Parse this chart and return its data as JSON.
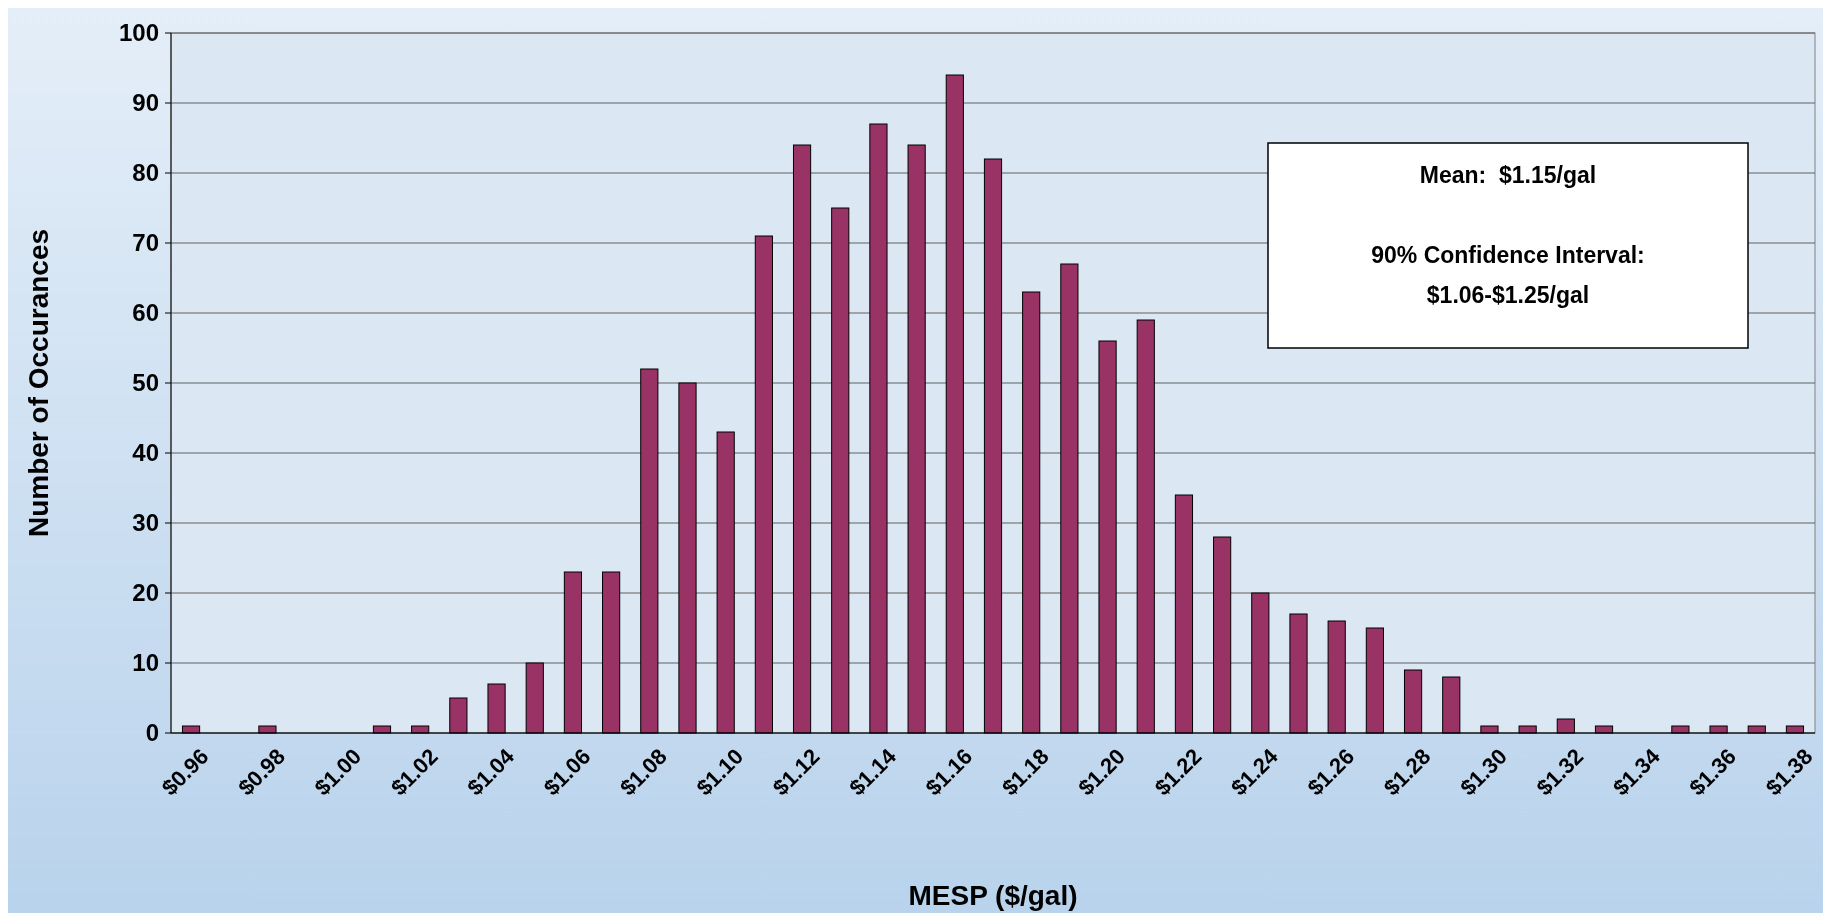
{
  "chart_data": {
    "type": "bar",
    "xlabel": "MESP ($/gal)",
    "ylabel": "Number of Occurances",
    "categories": [
      "$0.96",
      null,
      "$0.98",
      null,
      "$1.00",
      null,
      "$1.02",
      null,
      "$1.04",
      null,
      "$1.06",
      null,
      "$1.08",
      null,
      "$1.10",
      null,
      "$1.12",
      null,
      "$1.14",
      null,
      "$1.16",
      null,
      "$1.18",
      null,
      "$1.20",
      null,
      "$1.22",
      null,
      "$1.24",
      null,
      "$1.26",
      null,
      "$1.28",
      null,
      "$1.30",
      null,
      "$1.32",
      null,
      "$1.34",
      null,
      "$1.36",
      null,
      "$1.38"
    ],
    "values": [
      1,
      0,
      1,
      0,
      0,
      1,
      1,
      5,
      7,
      10,
      23,
      23,
      52,
      50,
      43,
      71,
      84,
      75,
      87,
      84,
      94,
      82,
      63,
      67,
      56,
      59,
      34,
      28,
      20,
      17,
      16,
      15,
      9,
      8,
      1,
      1,
      2,
      1,
      0,
      1,
      1,
      1,
      1
    ],
    "color": "#993366",
    "ylim": [
      0,
      100
    ],
    "yticks": [
      0,
      10,
      20,
      30,
      40,
      50,
      60,
      70,
      80,
      90,
      100
    ],
    "grid": "y",
    "annotations": [
      "Mean:  $1.15/gal",
      "90% Confidence Interval:",
      "$1.06-$1.25/gal"
    ]
  }
}
